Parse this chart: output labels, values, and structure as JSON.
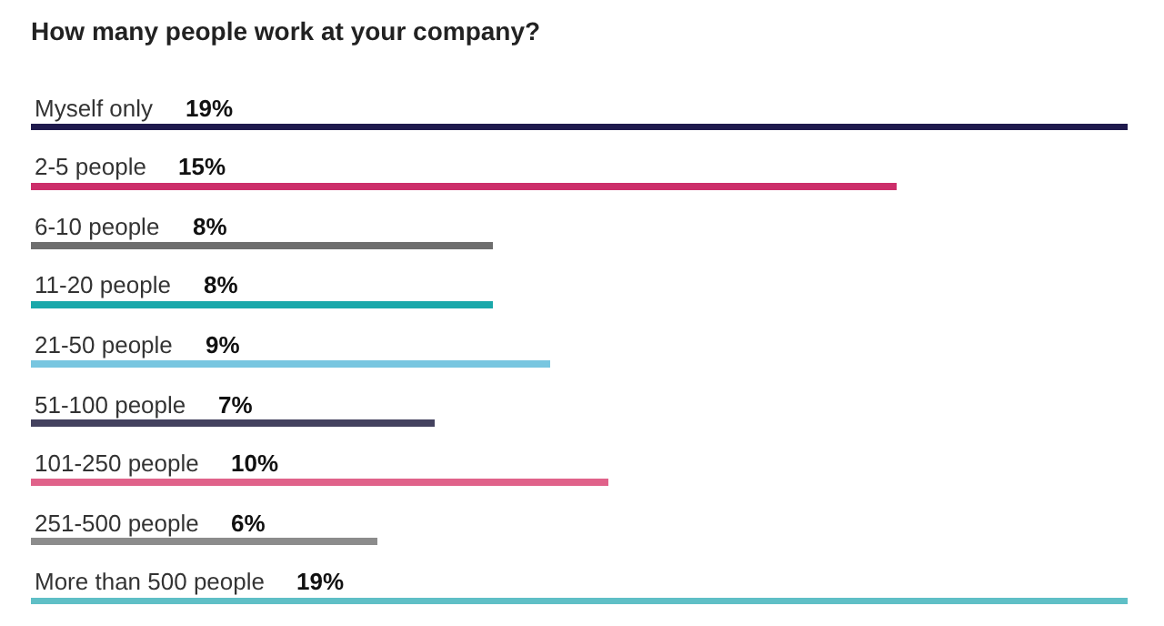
{
  "chart_data": {
    "type": "bar",
    "orientation": "horizontal",
    "title": "How many people work at your company?",
    "categories": [
      "Myself only",
      "2-5 people",
      "6-10 people",
      "11-20 people",
      "21-50 people",
      "51-100 people",
      "101-250 people",
      "251-500 people",
      "More than 500 people"
    ],
    "values": [
      19,
      15,
      8,
      8,
      9,
      7,
      10,
      6,
      19
    ],
    "colors": [
      "#1f1a4d",
      "#cc2e6a",
      "#6e6e6e",
      "#1aa8aa",
      "#78c6e0",
      "#44425f",
      "#e0628a",
      "#8c8c8c",
      "#5fbfc6"
    ],
    "value_labels": [
      "19%",
      "15%",
      "8%",
      "8%",
      "9%",
      "7%",
      "10%",
      "6%",
      "19%"
    ]
  }
}
